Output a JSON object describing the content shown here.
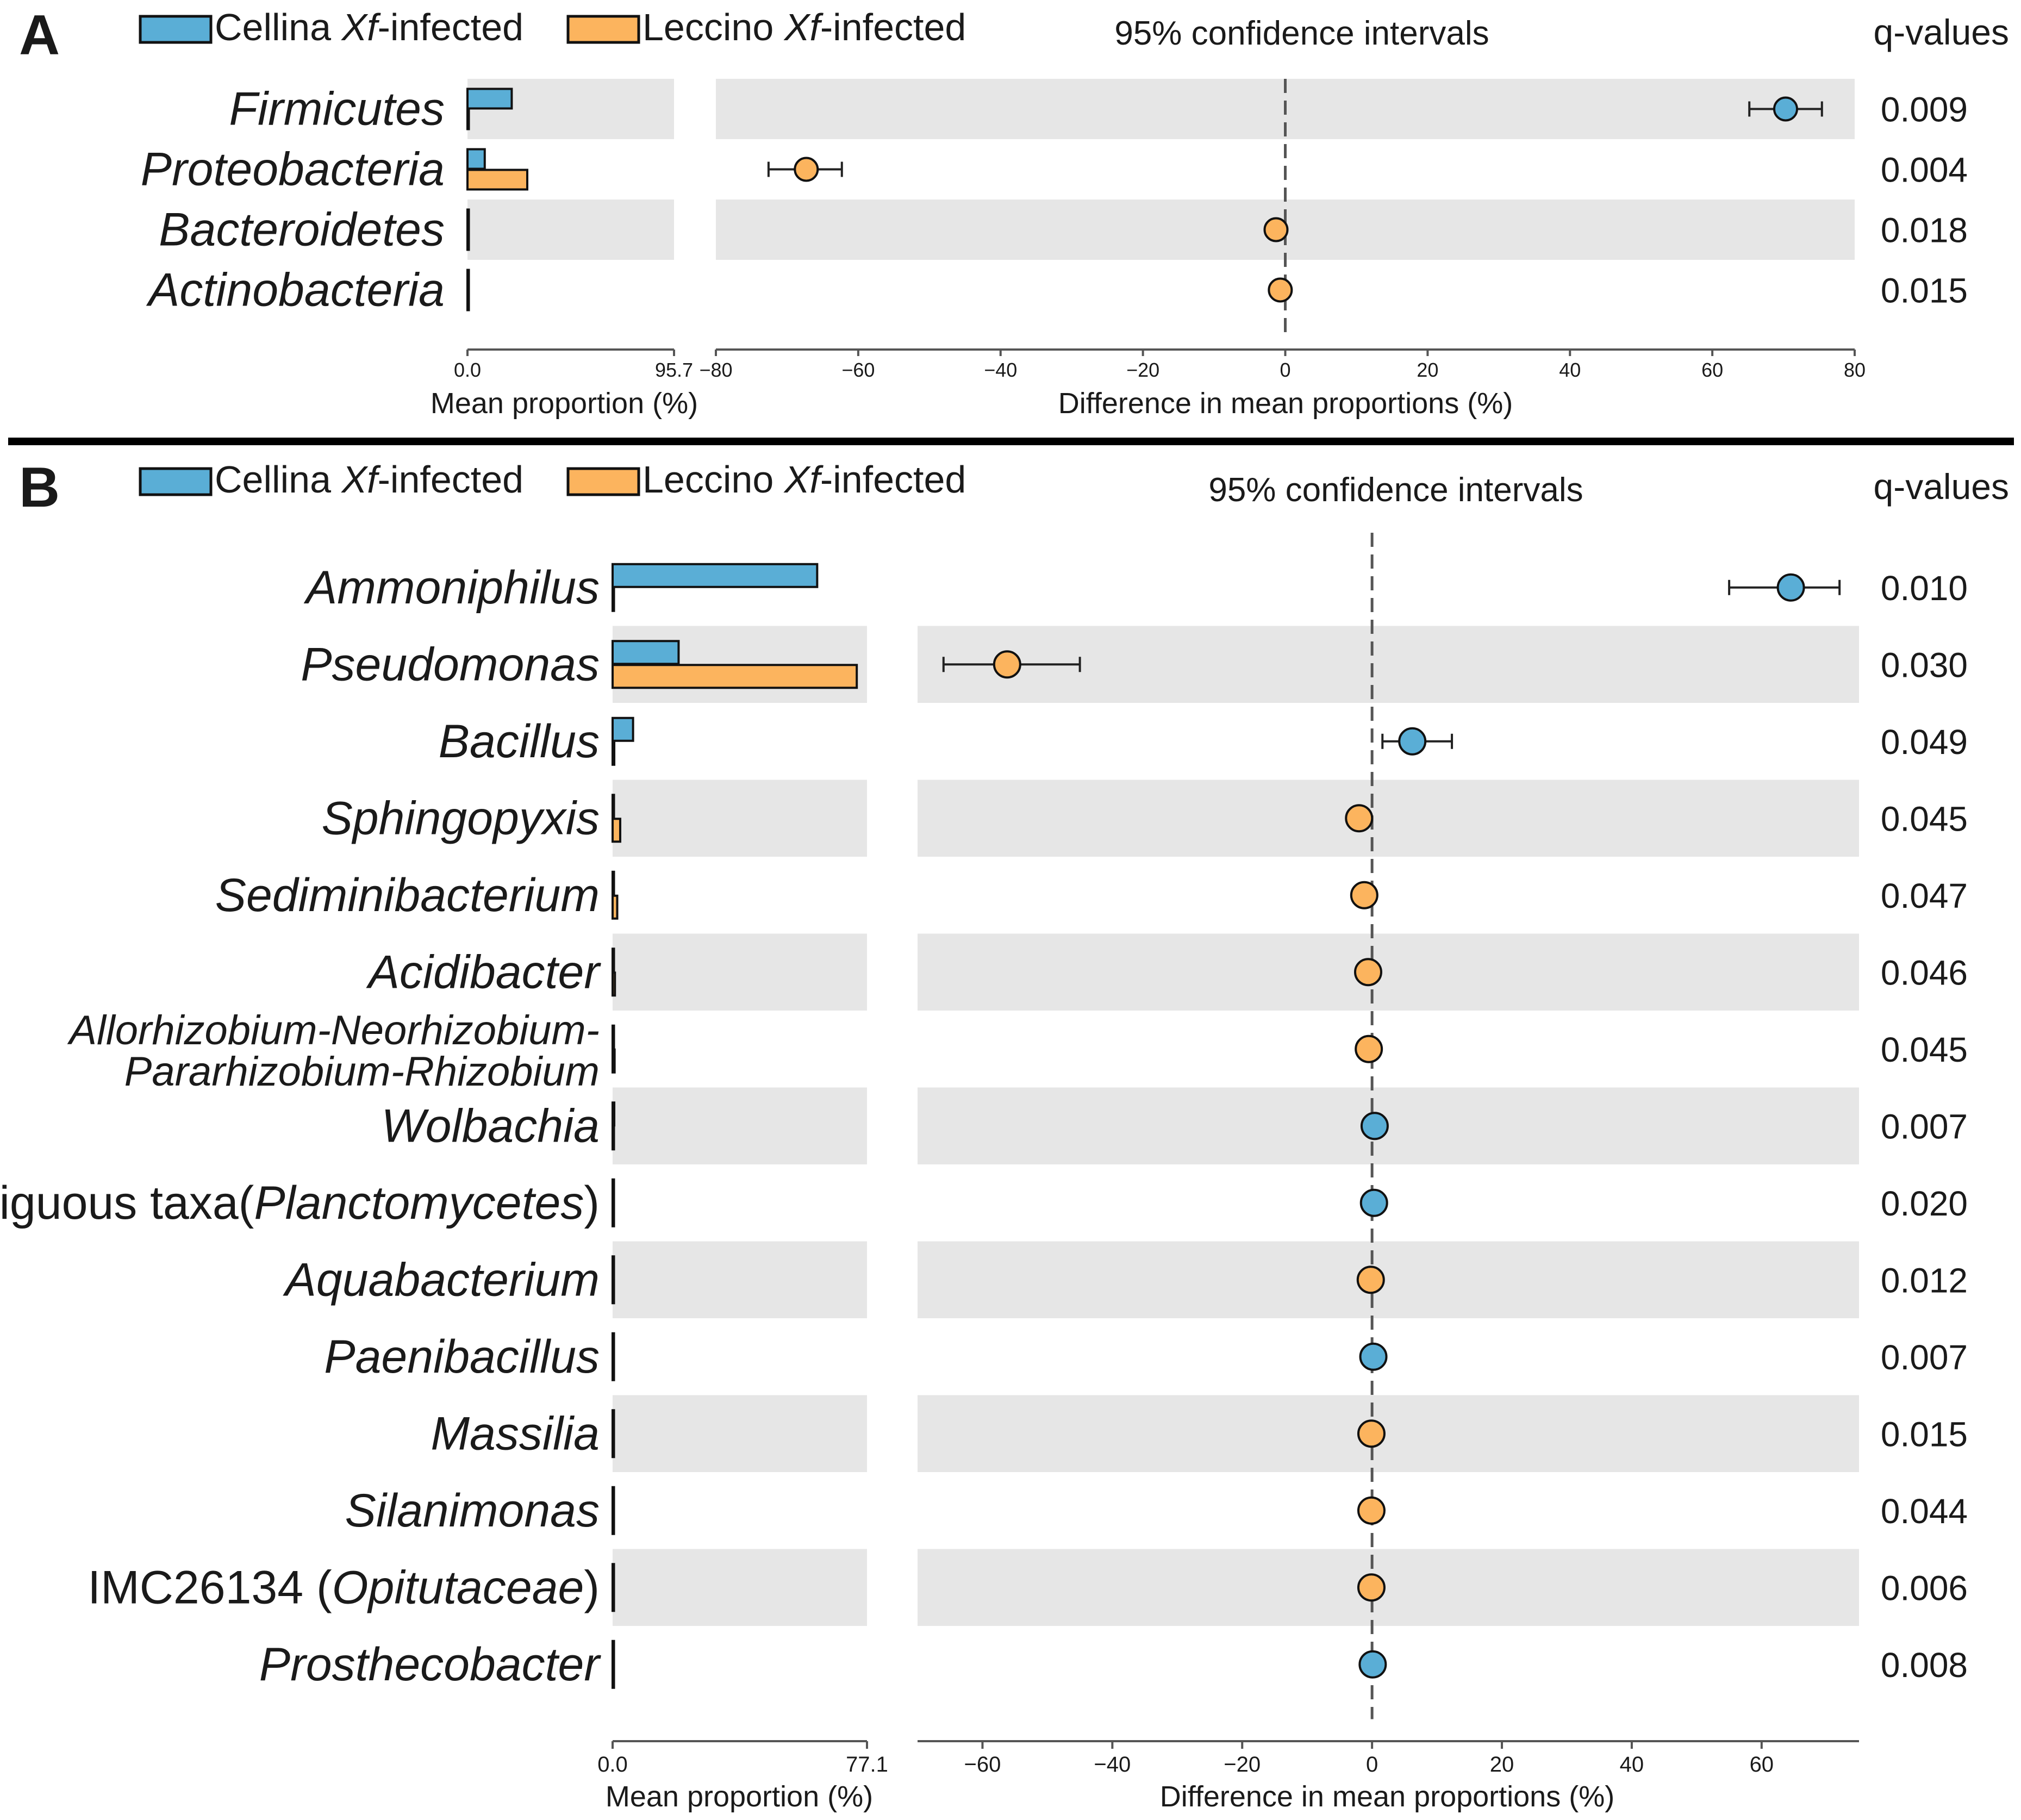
{
  "colors": {
    "cellina": "#5aaed6",
    "leccino": "#fcb45e",
    "stripe": "#e6e6e6",
    "axis": "#555555",
    "ink": "#1a1a1a",
    "divider": "#000000"
  },
  "chart_data": [
    {
      "type": "extended_error_bar",
      "panel_label": "A",
      "legend": [
        {
          "prefix": "Cellina ",
          "italic": "Xf",
          "suffix": "-infected",
          "color": "#5aaed6"
        },
        {
          "prefix": "Leccino ",
          "italic": "Xf",
          "suffix": "-infected",
          "color": "#fcb45e"
        }
      ],
      "ci_title": "95% confidence intervals",
      "q_header": "q-values",
      "bar_axis": {
        "min": 0,
        "max": 95.7,
        "ticks": [
          "0.0",
          "95.7"
        ],
        "xlabel": "Mean proportion (%)"
      },
      "diff_axis": {
        "min": -80,
        "max": 80,
        "ticks": [
          -80,
          -60,
          -40,
          -20,
          0,
          20,
          40,
          60,
          80
        ],
        "xlabel": "Difference in mean proportions (%)"
      },
      "rows": [
        {
          "label": [
            {
              "t": "Firmicutes",
              "i": true
            }
          ],
          "cellina": 20.5,
          "leccino": 0.0,
          "diff": 70.3,
          "ci": [
            65.2,
            75.4
          ],
          "group": "cellina",
          "q": "0.009"
        },
        {
          "label": [
            {
              "t": "Proteobacteria",
              "i": true
            }
          ],
          "cellina": 8.0,
          "leccino": 27.7,
          "diff": -67.3,
          "ci": [
            -72.6,
            -62.3
          ],
          "group": "leccino",
          "q": "0.004"
        },
        {
          "label": [
            {
              "t": "Bacteroidetes",
              "i": true
            }
          ],
          "cellina": 0.0,
          "leccino": 0.4,
          "diff": -1.3,
          "ci": [
            -1.8,
            -0.8
          ],
          "group": "leccino",
          "q": "0.018"
        },
        {
          "label": [
            {
              "t": "Actinobacteria",
              "i": true
            }
          ],
          "cellina": 0.0,
          "leccino": 0.2,
          "diff": -0.7,
          "ci": [
            -1.0,
            -0.4
          ],
          "group": "leccino",
          "q": "0.015"
        }
      ]
    },
    {
      "type": "extended_error_bar",
      "panel_label": "B",
      "legend": [
        {
          "prefix": "Cellina ",
          "italic": "Xf",
          "suffix": "-infected",
          "color": "#5aaed6"
        },
        {
          "prefix": "Leccino ",
          "italic": "Xf",
          "suffix": "-infected",
          "color": "#fcb45e"
        }
      ],
      "ci_title": "95% confidence intervals",
      "q_header": "q-values",
      "bar_axis": {
        "min": 0,
        "max": 77.1,
        "ticks": [
          "0.0",
          "77.1"
        ],
        "xlabel": "Mean proportion (%)"
      },
      "diff_axis": {
        "min": -70,
        "max": 75,
        "ticks": [
          -60,
          -40,
          -20,
          0,
          20,
          40,
          60
        ],
        "xlabel": "Difference in mean proportions (%)"
      },
      "rows": [
        {
          "label": [
            {
              "t": "Ammoniphilus",
              "i": true
            }
          ],
          "cellina": 62.0,
          "leccino": 0.0,
          "diff": 64.5,
          "ci": [
            55.0,
            72.0
          ],
          "group": "cellina",
          "q": "0.010"
        },
        {
          "label": [
            {
              "t": "Pseudomonas",
              "i": true
            }
          ],
          "cellina": 20.0,
          "leccino": 74.0,
          "diff": -56.2,
          "ci": [
            -66.0,
            -45.0
          ],
          "group": "leccino",
          "q": "0.030"
        },
        {
          "label": [
            {
              "t": "Bacillus",
              "i": true
            }
          ],
          "cellina": 6.2,
          "leccino": 0.5,
          "diff": 6.2,
          "ci": [
            1.6,
            12.3
          ],
          "group": "cellina",
          "q": "0.049"
        },
        {
          "label": [
            {
              "t": "Sphingopyxis",
              "i": true
            }
          ],
          "cellina": 0.3,
          "leccino": 2.3,
          "diff": -2.0,
          "ci": [
            -2.6,
            -1.4
          ],
          "group": "leccino",
          "q": "0.045"
        },
        {
          "label": [
            {
              "t": "Sediminibacterium",
              "i": true
            }
          ],
          "cellina": 0.2,
          "leccino": 1.4,
          "diff": -1.2,
          "ci": [
            -1.6,
            -0.8
          ],
          "group": "leccino",
          "q": "0.047"
        },
        {
          "label": [
            {
              "t": "Acidibacter",
              "i": true
            }
          ],
          "cellina": 0.1,
          "leccino": 0.7,
          "diff": -0.6,
          "ci": [
            -0.9,
            -0.3
          ],
          "group": "leccino",
          "q": "0.046"
        },
        {
          "label": [
            {
              "t": "Allorhizobium-Neorhizobium-",
              "i": true
            },
            {
              "t": "Pararhizobium-Rhizobium",
              "i": true
            }
          ],
          "cellina": 0.1,
          "leccino": 0.6,
          "diff": -0.5,
          "ci": [
            -0.8,
            -0.2
          ],
          "group": "leccino",
          "q": "0.045"
        },
        {
          "label": [
            {
              "t": "Wolbachia",
              "i": true
            }
          ],
          "cellina": 0.5,
          "leccino": 0.1,
          "diff": 0.4,
          "ci": [
            0.2,
            0.6
          ],
          "group": "cellina",
          "q": "0.007"
        },
        {
          "label": [
            {
              "t": "Ambiguous taxa",
              "i": false
            },
            {
              "t": "(",
              "i": false,
              "join": true
            },
            {
              "t": "Planctomycetes",
              "i": true,
              "join": true
            },
            {
              "t": ")",
              "i": false,
              "join": true
            }
          ],
          "cellina": 0.4,
          "leccino": 0.1,
          "diff": 0.3,
          "ci": [
            0.1,
            0.5
          ],
          "group": "cellina",
          "q": "0.020"
        },
        {
          "label": [
            {
              "t": "Aquabacterium",
              "i": true
            }
          ],
          "cellina": 0.0,
          "leccino": 0.2,
          "diff": -0.2,
          "ci": [
            -0.3,
            -0.1
          ],
          "group": "leccino",
          "q": "0.012"
        },
        {
          "label": [
            {
              "t": "Paenibacillus",
              "i": true
            }
          ],
          "cellina": 0.2,
          "leccino": 0.0,
          "diff": 0.2,
          "ci": [
            0.1,
            0.3
          ],
          "group": "cellina",
          "q": "0.007"
        },
        {
          "label": [
            {
              "t": "Massilia",
              "i": true
            }
          ],
          "cellina": 0.0,
          "leccino": 0.1,
          "diff": -0.1,
          "ci": [
            -0.2,
            0.0
          ],
          "group": "leccino",
          "q": "0.015"
        },
        {
          "label": [
            {
              "t": "Silanimonas",
              "i": true
            }
          ],
          "cellina": 0.0,
          "leccino": 0.1,
          "diff": -0.1,
          "ci": [
            -0.2,
            0.0
          ],
          "group": "leccino",
          "q": "0.044"
        },
        {
          "label": [
            {
              "t": "IMC26134 (",
              "i": false
            },
            {
              "t": "Opitutaceae",
              "i": true
            },
            {
              "t": ")",
              "i": false
            }
          ],
          "cellina": 0.0,
          "leccino": 0.1,
          "diff": -0.1,
          "ci": [
            -0.2,
            0.0
          ],
          "group": "leccino",
          "q": "0.006"
        },
        {
          "label": [
            {
              "t": "Prosthecobacter",
              "i": true
            }
          ],
          "cellina": 0.1,
          "leccino": 0.0,
          "diff": 0.1,
          "ci": [
            0.0,
            0.2
          ],
          "group": "cellina",
          "q": "0.008"
        }
      ]
    }
  ]
}
